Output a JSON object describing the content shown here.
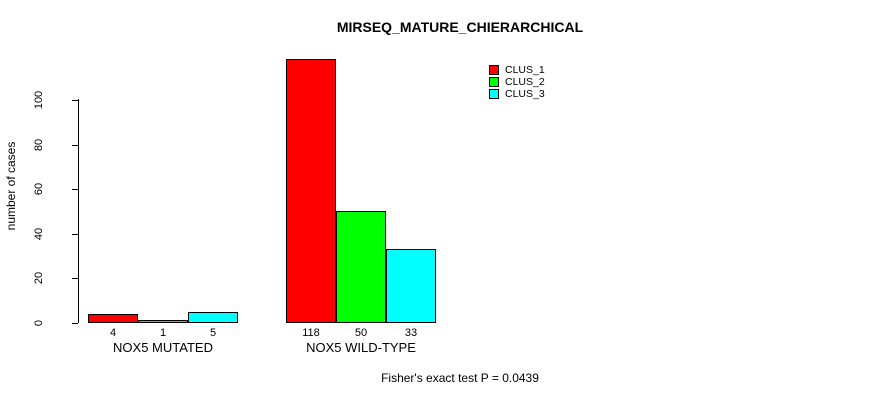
{
  "chart_data": {
    "type": "bar",
    "title": "MIRSEQ_MATURE_CHIERARCHICAL",
    "xlabel": "",
    "ylabel": "number of cases",
    "ylim": [
      0,
      120
    ],
    "yticks": [
      0,
      20,
      40,
      60,
      80,
      100
    ],
    "grid": false,
    "legend_position": "top-right",
    "categories": [
      "NOX5 MUTATED",
      "NOX5 WILD-TYPE"
    ],
    "series": [
      {
        "name": "CLUS_1",
        "color": "#ff0000",
        "values": [
          4,
          118
        ]
      },
      {
        "name": "CLUS_2",
        "color": "#00ff00",
        "values": [
          1,
          50
        ]
      },
      {
        "name": "CLUS_3",
        "color": "#00ffff",
        "values": [
          5,
          33
        ]
      }
    ],
    "bar_value_labels": [
      [
        4,
        1,
        5
      ],
      [
        118,
        50,
        33
      ]
    ],
    "annotation": "Fisher's exact test P = 0.0439"
  },
  "colors": {
    "clus_1": "#ff0000",
    "clus_2": "#00ff00",
    "clus_3": "#00ffff",
    "axis": "#000000",
    "background": "#ffffff"
  }
}
